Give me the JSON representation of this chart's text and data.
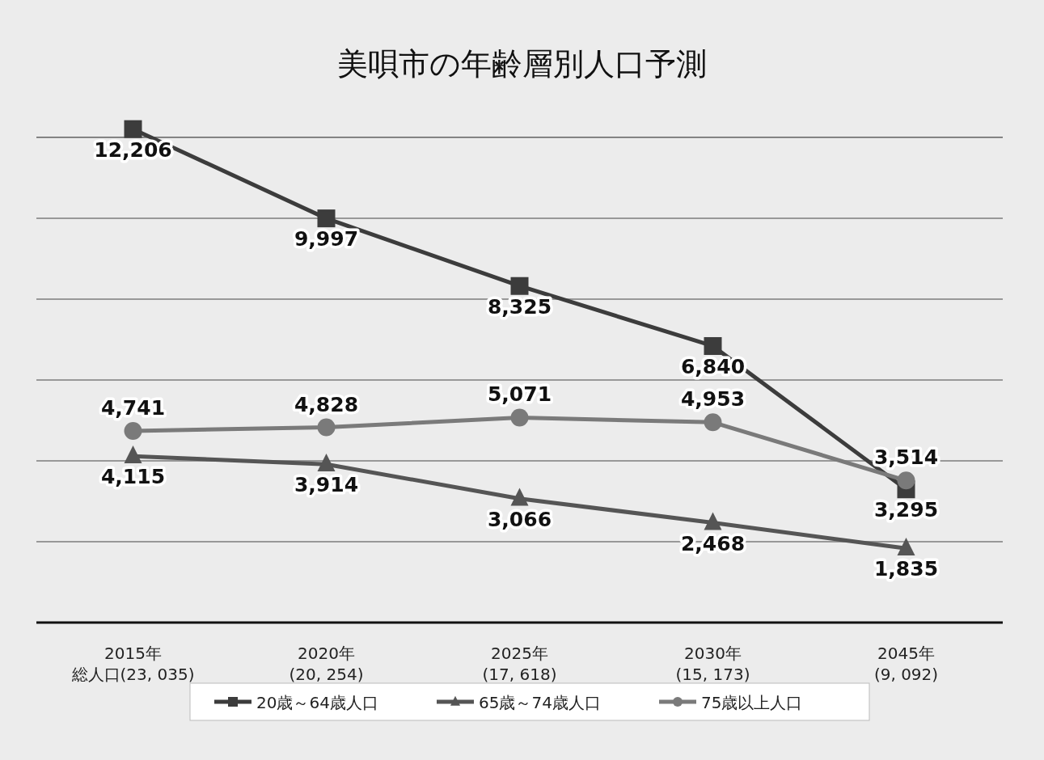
{
  "chart_data": {
    "type": "line",
    "title": "美唄市の年齢層別人口予測",
    "categories": [
      "2015年総人口(23, 035)",
      "2020年(20, 254)",
      "2025年(17, 618)",
      "2030年(15, 173)",
      "2045年(9, 092)"
    ],
    "series": [
      {
        "name": "20歳～64歳人口",
        "color": "#3c3c3c",
        "marker": "square",
        "values": [
          12206,
          9997,
          8325,
          6840,
          3295
        ],
        "value_labels": [
          "12,206",
          "9,997",
          "8,325",
          "6,840",
          "3,295"
        ]
      },
      {
        "name": "65歳～74歳人口",
        "color": "#555555",
        "marker": "triangle",
        "values": [
          4115,
          3914,
          3066,
          2468,
          1835
        ],
        "value_labels": [
          "4,115",
          "3,914",
          "3,066",
          "2,468",
          "1,835"
        ]
      },
      {
        "name": "75歳以上人口",
        "color": "#7a7a7a",
        "marker": "circle",
        "values": [
          4741,
          4828,
          5071,
          4953,
          3514
        ],
        "value_labels": [
          "4,741",
          "4,828",
          "5,071",
          "4,953",
          "3,514"
        ]
      }
    ],
    "grid": "y",
    "tick_labels": "x",
    "legend": "bottom",
    "line_style": "solid"
  }
}
